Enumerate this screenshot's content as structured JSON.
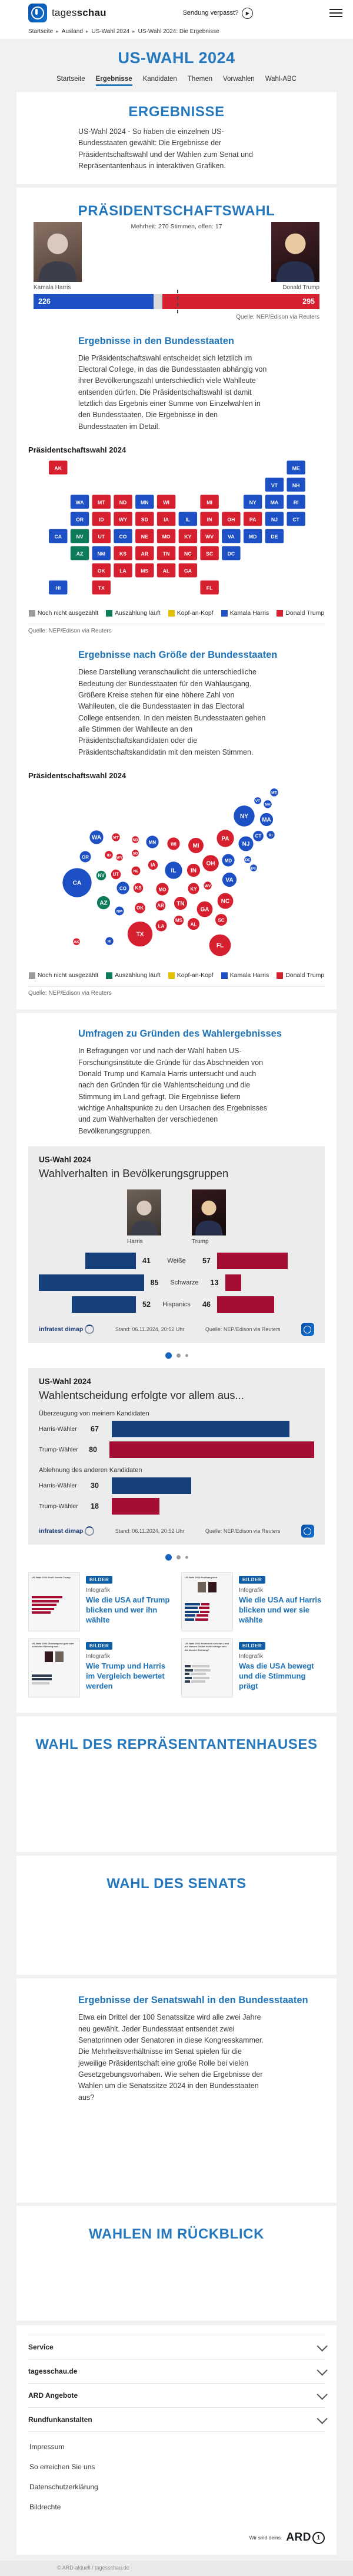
{
  "header": {
    "brand_tages": "tages",
    "brand_schau": "schau",
    "missed_show": "Sendung verpasst?",
    "breadcrumb": [
      "Startseite",
      "Ausland",
      "US-Wahl 2024",
      "US-Wahl 2024: Die Ergebnisse"
    ]
  },
  "hero": {
    "title": "US-WAHL 2024",
    "tabs": [
      {
        "label": "Startseite",
        "active": false
      },
      {
        "label": "Ergebnisse",
        "active": true
      },
      {
        "label": "Kandidaten",
        "active": false
      },
      {
        "label": "Themen",
        "active": false
      },
      {
        "label": "Vorwahlen",
        "active": false
      },
      {
        "label": "Wahl-ABC",
        "active": false
      }
    ]
  },
  "results_intro": {
    "title": "ERGEBNISSE",
    "text": "US-Wahl 2024 - So haben die einzelnen US-Bundesstaaten gewählt: Die Ergebnisse der Präsidentschaftswahl und der Wahlen zum Senat und Repräsentantenhaus in interaktiven Grafiken."
  },
  "president": {
    "title": "PRÄSIDENTSCHAFTSWAHL",
    "majority_note": "Mehrheit: 270 Stimmen, offen: 17",
    "harris_name": "Kamala Harris",
    "trump_name": "Donald Trump",
    "harris_votes": "226",
    "trump_votes": "295",
    "source": "Quelle: NEP/Edison via Reuters"
  },
  "map_colors": {
    "none": "#9b9b9b",
    "g": "#0e7c5b",
    "head": "#e3c000",
    "h": "#1d50c4",
    "t": "#d6202f"
  },
  "map_legend": [
    {
      "key": "none",
      "label": "Noch nicht ausgezählt"
    },
    {
      "key": "g",
      "label": "Auszählung läuft"
    },
    {
      "key": "head",
      "label": "Kopf-an-Kopf"
    },
    {
      "key": "h",
      "label": "Kamala Harris"
    },
    {
      "key": "t",
      "label": "Donald Trump"
    }
  ],
  "states_section": {
    "title": "Ergebnisse in den Bundesstaaten",
    "text": "Die Präsidentschaftswahl entscheidet sich letztlich im Electoral College, in das die Bundesstaaten abhängig von ihrer Bevölkerungszahl unterschiedlich viele Wahlleute entsenden dürfen. Die Präsidentschaftswahl ist damit letztlich das Ergebnis einer Summe von Einzelwahlen in den Bundesstaaten. Die Ergebnisse in den Bundesstaaten im Detail.",
    "chart_label": "Präsidentschaftswahl 2024",
    "source": "Quelle: NEP/Edison via Reuters"
  },
  "size_section": {
    "title": "Ergebnisse nach Größe der Bundesstaaten",
    "text": "Diese Darstellung veranschaulicht die unterschiedliche Bedeutung der Bundesstaaten für den Wahlausgang. Größere Kreise stehen für eine höhere Zahl von Wahlleuten, die die Bundesstaaten in das Electoral College entsenden. In den meisten Bundesstaaten gehen alle Stimmen der Wahlleute an den Präsidentschaftskandidaten oder die Präsidentschaftskandidatin mit den meisten Stimmen.",
    "chart_label": "Präsidentschaftswahl 2024",
    "source": "Quelle: NEP/Edison via Reuters"
  },
  "polls_section": {
    "title": "Umfragen zu Gründen des Wahlergebnisses",
    "text": "In Befragungen vor und nach der Wahl haben US-Forschungsinstitute die Gründe für das Abschneiden von Donald Trump und Kamala Harris untersucht und auch nach den Gründen für die Wahlentscheidung und die Stimmung im Land gefragt. Die Ergebnisse liefern wichtige Anhaltspunkte zu den Ursachen des Ergebnisses und zum Wahlverhalten der verschiedenen Bevölkerungsgruppen."
  },
  "infographic1": {
    "kicker": "US-Wahl 2024",
    "title": "Wahlverhalten in Bevölkerungsgruppen",
    "harris_label": "Harris",
    "trump_label": "Trump",
    "stand": "Stand:  06.11.2024, 20:52 Uhr",
    "source": "Quelle: NEP/Edison via Reuters",
    "brand": "infratest dimap"
  },
  "infographic2": {
    "kicker": "US-Wahl 2024",
    "title": "Wahlentscheidung erfolgte vor allem aus...",
    "stand": "Stand:  06.11.2024, 20:52 Uhr",
    "source": "Quelle: NEP/Edison via Reuters",
    "brand": "infratest dimap"
  },
  "teasers": [
    {
      "badge": "BILDER",
      "kicker": "Infografik",
      "title": "Wie die USA auf Trump blicken und wer ihn wählte",
      "thumb": "bars-red",
      "thumb_title": "US-Wahl 2024 Profil Donald Trump"
    },
    {
      "badge": "BILDER",
      "kicker": "Infografik",
      "title": "Wie die USA auf Harris blicken und wer sie wählte",
      "thumb": "compare",
      "thumb_title": "US-Wahl 2024 Profilvergleich"
    },
    {
      "badge": "BILDER",
      "kicker": "Infografik",
      "title": "Wie Trump und Harris im Vergleich bewertet werden",
      "thumb": "two-photos",
      "thumb_title": "US-Wahl 2024 Überwiegend gute oder schlechte Meinung von..."
    },
    {
      "badge": "BILDER",
      "kicker": "Infografik",
      "title": "Was die USA bewegt und die Stimmung prägt",
      "thumb": "mood",
      "thumb_title": "US-Wahl 2024 Entwickelt sich das Land auf diesem Gebiet in die richtige oder die falsche Richtung?"
    }
  ],
  "house_section": {
    "title": "WAHL DES REPRÄSENTANTENHAUSES"
  },
  "senate_section": {
    "title": "WAHL DES SENATS"
  },
  "senate_states": {
    "title": "Ergebnisse der Senatswahl in den Bundesstaaten",
    "text": "Etwa ein Drittel der 100 Senatssitze wird alle zwei Jahre neu gewählt. Jeder Bundesstaat entsendet zwei Senatorinnen oder Senatoren in diese Kongresskammer. Die Mehrheitsverhältnisse im Senat spielen für die jeweilige Präsidentschaft eine große Rolle bei vielen Gesetzgebungsvorhaben. Wie sehen die Ergebnisse der Wahlen um die Senatssitze 2024 in den Bundesstaaten aus?"
  },
  "review_section": {
    "title": "WAHLEN IM RÜCKBLICK"
  },
  "footer": {
    "accordions": [
      "Service",
      "tagesschau.de",
      "ARD Angebote",
      "Rundfunkanstalten"
    ],
    "links": [
      "Impressum",
      "So erreichen Sie uns",
      "Datenschutzerklärung",
      "Bildrechte"
    ],
    "ard_claim": "Wir sind deins.",
    "ard": "ARD",
    "copyright": "© ARD-aktuell / tagesschau.de"
  },
  "carousel": {
    "dots": 3
  },
  "chart_data": [
    {
      "type": "bar",
      "title": "Präsidentschaftswahl — Electoral College",
      "categories": [
        "Kamala Harris",
        "offen",
        "Donald Trump"
      ],
      "values": [
        226,
        17,
        295
      ],
      "majority": 270,
      "total": 538,
      "colors": [
        "#1d50c4",
        "#d9d9d9",
        "#d6202f"
      ]
    },
    {
      "type": "heatmap",
      "title": "Präsidentschaftswahl 2024 — Ergebnisse in den Bundesstaaten",
      "legend": [
        "Noch nicht ausgezählt",
        "Auszählung läuft",
        "Kopf-an-Kopf",
        "Kamala Harris",
        "Donald Trump"
      ],
      "status_key": {
        "h": "Kamala Harris",
        "t": "Donald Trump",
        "g": "Auszählung läuft"
      },
      "states": [
        {
          "c": "AK",
          "ev": 3,
          "s": "t",
          "tx": 55,
          "ty": 4,
          "bx": 29,
          "by": 268
        },
        {
          "c": "ME",
          "ev": 4,
          "s": "h",
          "tx": 473,
          "ty": 4,
          "bx": 365,
          "by": 15
        },
        {
          "c": "VT",
          "ev": 3,
          "s": "h",
          "tx": 435,
          "ty": 34,
          "bx": 337,
          "by": 29
        },
        {
          "c": "NH",
          "ev": 4,
          "s": "h",
          "tx": 473,
          "ty": 34,
          "bx": 354,
          "by": 35
        },
        {
          "c": "WA",
          "ev": 12,
          "s": "h",
          "tx": 93,
          "ty": 64,
          "bx": 63,
          "by": 91
        },
        {
          "c": "MT",
          "ev": 4,
          "s": "t",
          "tx": 131,
          "ty": 64,
          "bx": 96,
          "by": 91
        },
        {
          "c": "ND",
          "ev": 3,
          "s": "t",
          "tx": 169,
          "ty": 64,
          "bx": 129,
          "by": 95
        },
        {
          "c": "MN",
          "ev": 10,
          "s": "h",
          "tx": 207,
          "ty": 64,
          "bx": 158,
          "by": 99
        },
        {
          "c": "WI",
          "ev": 10,
          "s": "t",
          "tx": 245,
          "ty": 64,
          "bx": 194,
          "by": 102
        },
        {
          "c": "MI",
          "ev": 15,
          "s": "t",
          "tx": 321,
          "ty": 64,
          "bx": 232,
          "by": 105
        },
        {
          "c": "NY",
          "ev": 28,
          "s": "h",
          "tx": 397,
          "ty": 64,
          "bx": 314,
          "by": 55
        },
        {
          "c": "MA",
          "ev": 11,
          "s": "h",
          "tx": 435,
          "ty": 64,
          "bx": 352,
          "by": 61
        },
        {
          "c": "RI",
          "ev": 4,
          "s": "h",
          "tx": 473,
          "ty": 64,
          "bx": 359,
          "by": 87
        },
        {
          "c": "OR",
          "ev": 8,
          "s": "h",
          "tx": 93,
          "ty": 94,
          "bx": 44,
          "by": 124
        },
        {
          "c": "ID",
          "ev": 4,
          "s": "t",
          "tx": 131,
          "ty": 94,
          "bx": 84,
          "by": 121
        },
        {
          "c": "WY",
          "ev": 3,
          "s": "t",
          "tx": 169,
          "ty": 94,
          "bx": 102,
          "by": 125
        },
        {
          "c": "SD",
          "ev": 3,
          "s": "t",
          "tx": 207,
          "ty": 94,
          "bx": 129,
          "by": 118
        },
        {
          "c": "IA",
          "ev": 6,
          "s": "t",
          "tx": 245,
          "ty": 94,
          "bx": 159,
          "by": 138
        },
        {
          "c": "IL",
          "ev": 19,
          "s": "h",
          "tx": 283,
          "ty": 94,
          "bx": 194,
          "by": 147
        },
        {
          "c": "IN",
          "ev": 11,
          "s": "t",
          "tx": 321,
          "ty": 94,
          "bx": 228,
          "by": 147
        },
        {
          "c": "OH",
          "ev": 17,
          "s": "t",
          "tx": 359,
          "ty": 94,
          "bx": 257,
          "by": 135
        },
        {
          "c": "PA",
          "ev": 19,
          "s": "t",
          "tx": 397,
          "ty": 94,
          "bx": 282,
          "by": 93
        },
        {
          "c": "NJ",
          "ev": 14,
          "s": "h",
          "tx": 435,
          "ty": 94,
          "bx": 317,
          "by": 102
        },
        {
          "c": "CT",
          "ev": 7,
          "s": "h",
          "tx": 473,
          "ty": 94,
          "bx": 338,
          "by": 89
        },
        {
          "c": "CA",
          "ev": 54,
          "s": "h",
          "tx": 55,
          "ty": 124,
          "bx": 30,
          "by": 168
        },
        {
          "c": "NV",
          "ev": 6,
          "s": "g",
          "tx": 93,
          "ty": 124,
          "bx": 71,
          "by": 156
        },
        {
          "c": "UT",
          "ev": 6,
          "s": "t",
          "tx": 131,
          "ty": 124,
          "bx": 96,
          "by": 154
        },
        {
          "c": "CO",
          "ev": 10,
          "s": "h",
          "tx": 169,
          "ty": 124,
          "bx": 108,
          "by": 177
        },
        {
          "c": "NE",
          "ev": 5,
          "s": "t",
          "tx": 207,
          "ty": 124,
          "bx": 130,
          "by": 148
        },
        {
          "c": "MO",
          "ev": 10,
          "s": "t",
          "tx": 245,
          "ty": 124,
          "bx": 175,
          "by": 179
        },
        {
          "c": "KY",
          "ev": 8,
          "s": "t",
          "tx": 283,
          "ty": 124,
          "bx": 228,
          "by": 178
        },
        {
          "c": "WV",
          "ev": 4,
          "s": "t",
          "tx": 321,
          "ty": 124,
          "bx": 252,
          "by": 173
        },
        {
          "c": "VA",
          "ev": 13,
          "s": "h",
          "tx": 359,
          "ty": 124,
          "bx": 289,
          "by": 163
        },
        {
          "c": "MD",
          "ev": 10,
          "s": "h",
          "tx": 397,
          "ty": 124,
          "bx": 287,
          "by": 130
        },
        {
          "c": "DE",
          "ev": 3,
          "s": "h",
          "tx": 435,
          "ty": 124,
          "bx": 320,
          "by": 129
        },
        {
          "c": "AZ",
          "ev": 11,
          "s": "g",
          "tx": 93,
          "ty": 154,
          "bx": 75,
          "by": 202
        },
        {
          "c": "NM",
          "ev": 5,
          "s": "h",
          "tx": 131,
          "ty": 154,
          "bx": 102,
          "by": 216
        },
        {
          "c": "KS",
          "ev": 6,
          "s": "t",
          "tx": 169,
          "ty": 154,
          "bx": 134,
          "by": 177
        },
        {
          "c": "AR",
          "ev": 6,
          "s": "t",
          "tx": 207,
          "ty": 154,
          "bx": 172,
          "by": 207
        },
        {
          "c": "TN",
          "ev": 11,
          "s": "t",
          "tx": 245,
          "ty": 154,
          "bx": 206,
          "by": 203
        },
        {
          "c": "NC",
          "ev": 16,
          "s": "t",
          "tx": 283,
          "ty": 154,
          "bx": 282,
          "by": 199
        },
        {
          "c": "SC",
          "ev": 9,
          "s": "t",
          "tx": 321,
          "ty": 154,
          "bx": 275,
          "by": 231
        },
        {
          "c": "DC",
          "ev": 3,
          "s": "h",
          "tx": 359,
          "ty": 154,
          "bx": 330,
          "by": 143
        },
        {
          "c": "OK",
          "ev": 7,
          "s": "t",
          "tx": 131,
          "ty": 184,
          "bx": 137,
          "by": 211
        },
        {
          "c": "LA",
          "ev": 8,
          "s": "t",
          "tx": 169,
          "ty": 184,
          "bx": 173,
          "by": 241
        },
        {
          "c": "MS",
          "ev": 6,
          "s": "t",
          "tx": 207,
          "ty": 184,
          "bx": 203,
          "by": 232
        },
        {
          "c": "AL",
          "ev": 9,
          "s": "t",
          "tx": 245,
          "ty": 184,
          "bx": 228,
          "by": 238
        },
        {
          "c": "GA",
          "ev": 16,
          "s": "t",
          "tx": 283,
          "ty": 184,
          "bx": 247,
          "by": 213
        },
        {
          "c": "TX",
          "ev": 40,
          "s": "t",
          "tx": 131,
          "ty": 214,
          "bx": 137,
          "by": 255
        },
        {
          "c": "FL",
          "ev": 30,
          "s": "t",
          "tx": 321,
          "ty": 214,
          "bx": 273,
          "by": 274
        },
        {
          "c": "HI",
          "ev": 4,
          "s": "h",
          "tx": 55,
          "ty": 214,
          "bx": 85,
          "by": 267
        }
      ]
    },
    {
      "type": "scatter",
      "title": "Präsidentschaftswahl 2024 — Ergebnisse nach Größe der Bundesstaaten",
      "note": "Kreisfläche proportional zur Zahl der Wahlleute (Electoral College); verwendet chart_data[1].states (Felder ev, s, bx, by)."
    },
    {
      "type": "bar",
      "title": "Wahlverhalten in Bevölkerungsgruppen",
      "categories": [
        "Weiße",
        "Schwarze",
        "Hispanics"
      ],
      "series": [
        {
          "name": "Harris",
          "values": [
            41,
            85,
            52
          ],
          "color": "#16407c"
        },
        {
          "name": "Trump",
          "values": [
            57,
            13,
            46
          ],
          "color": "#a60d33"
        }
      ],
      "stand": "06.11.2024, 20:52 Uhr",
      "source": "NEP/Edison via Reuters"
    },
    {
      "type": "bar",
      "title": "Wahlentscheidung erfolgte vor allem aus...",
      "groups": [
        {
          "label": "Überzeugung von meinem Kandidaten",
          "rows": [
            {
              "label": "Harris-Wähler",
              "value": 67,
              "color": "#16407c"
            },
            {
              "label": "Trump-Wähler",
              "value": 80,
              "color": "#a60d33"
            }
          ]
        },
        {
          "label": "Ablehnung des anderen Kandidaten",
          "rows": [
            {
              "label": "Harris-Wähler",
              "value": 30,
              "color": "#16407c"
            },
            {
              "label": "Trump-Wähler",
              "value": 18,
              "color": "#a60d33"
            }
          ]
        }
      ],
      "xlim": [
        0,
        85
      ],
      "stand": "06.11.2024, 20:52 Uhr",
      "source": "NEP/Edison via Reuters"
    }
  ]
}
